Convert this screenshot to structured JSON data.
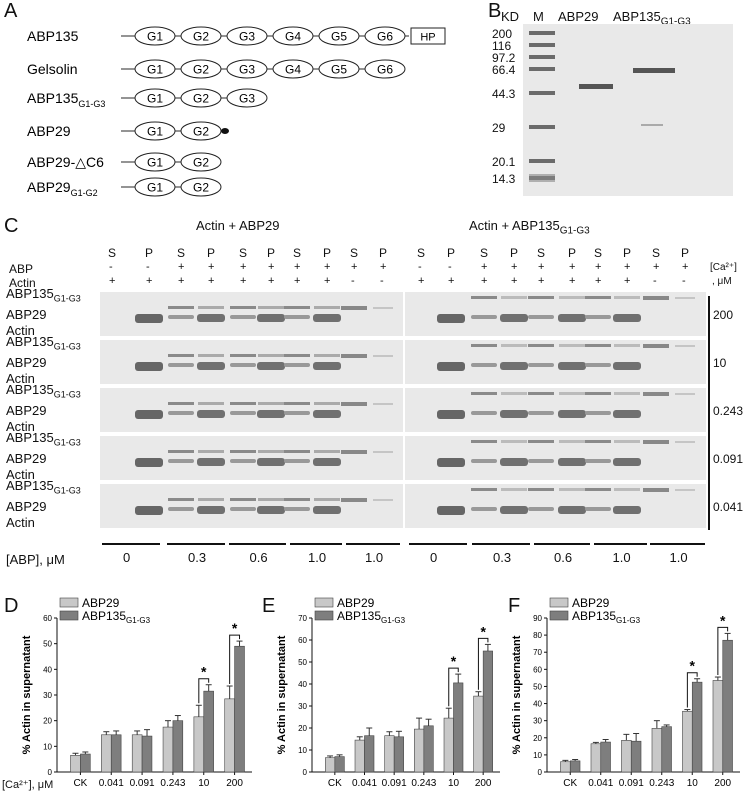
{
  "panel_a": {
    "letter": "A",
    "constructs": [
      {
        "name": "ABP135",
        "sub": "",
        "domains": [
          "G1",
          "G2",
          "G3",
          "G4",
          "G5",
          "G6"
        ],
        "tail": "HP"
      },
      {
        "name": "Gelsolin",
        "sub": "",
        "domains": [
          "G1",
          "G2",
          "G3",
          "G4",
          "G5",
          "G6"
        ],
        "tail": ""
      },
      {
        "name": "ABP135",
        "sub": "G1-G3",
        "domains": [
          "G1",
          "G2",
          "G3"
        ],
        "tail": ""
      },
      {
        "name": "ABP29",
        "sub": "",
        "domains": [
          "G1",
          "G2"
        ],
        "tail": "dot"
      },
      {
        "name": "ABP29-△C6",
        "sub": "",
        "domains": [
          "G1",
          "G2"
        ],
        "tail": ""
      },
      {
        "name": "ABP29",
        "sub": "G1-G2",
        "domains": [
          "G1",
          "G2"
        ],
        "tail": ""
      }
    ]
  },
  "panel_b": {
    "letter": "B",
    "kd_label": "KD",
    "lanes": [
      "M",
      "ABP29",
      "ABP135"
    ],
    "lane_sub": "G1-G3",
    "markers": [
      "200",
      "116",
      "97.2",
      "66.4",
      "44.3",
      "29",
      "20.1",
      "14.3"
    ]
  },
  "panel_c": {
    "letter": "C",
    "title_left": "Actin + ABP29",
    "title_right_main": "Actin + ABP135",
    "title_right_sub": "G1-G3",
    "sp_labels": [
      "S",
      "P",
      "S",
      "P",
      "S",
      "P",
      "S",
      "P",
      "S",
      "P"
    ],
    "abp_row": [
      "-",
      "-",
      "+",
      "+",
      "+",
      "+",
      "+",
      "+",
      "+",
      "+"
    ],
    "actin_row": [
      "+",
      "+",
      "+",
      "+",
      "+",
      "+",
      "+",
      "+",
      "-",
      "-"
    ],
    "abp_label": "ABP",
    "actin_label": "Actin",
    "ca_label": "[Ca²⁺]",
    "um_label": ", μM",
    "band_labels": {
      "abp135": "ABP135",
      "abp135_sub": "G1-G3",
      "abp29": "ABP29",
      "actin": "Actin"
    },
    "ca_values": [
      "200",
      "10",
      "0.243",
      "0.091",
      "0.041"
    ],
    "abp_conc_label": "[ABP],  μM",
    "abp_conc": [
      "0",
      "0.3",
      "0.6",
      "1.0",
      "1.0"
    ]
  },
  "chart_data": [
    {
      "type": "bar",
      "panel": "D",
      "categories": [
        "CK",
        "0.041",
        "0.091",
        "0.243",
        "10",
        "200"
      ],
      "series": [
        {
          "name": "ABP29",
          "values": [
            6.5,
            14.5,
            14.5,
            17.5,
            21.5,
            28.5
          ],
          "errors": [
            0.8,
            1.2,
            1.5,
            2.5,
            4.5,
            5
          ]
        },
        {
          "name": "ABP135G1-G3",
          "values": [
            7,
            14.5,
            14,
            20,
            31.5,
            49
          ],
          "errors": [
            0.8,
            1.5,
            2.5,
            2,
            2.5,
            2
          ]
        }
      ],
      "ylabel": "% Actin in supernatant",
      "xlabel": "[Ca²⁺], μM",
      "ylim": [
        0,
        60
      ],
      "yticks": [
        0,
        10,
        20,
        30,
        40,
        50,
        60
      ],
      "significance": [
        {
          "category": "10",
          "label": "*"
        },
        {
          "category": "200",
          "label": "*"
        }
      ]
    },
    {
      "type": "bar",
      "panel": "E",
      "categories": [
        "CK",
        "0.041",
        "0.091",
        "0.243",
        "10",
        "200"
      ],
      "series": [
        {
          "name": "ABP29",
          "values": [
            6.5,
            14.5,
            16.5,
            19.5,
            24.5,
            34.5
          ],
          "errors": [
            0.8,
            1.5,
            1.8,
            5,
            4.5,
            2
          ]
        },
        {
          "name": "ABP135G1-G3",
          "values": [
            7,
            16.5,
            16,
            21,
            40.5,
            55
          ],
          "errors": [
            0.8,
            3.5,
            2.5,
            3,
            4,
            3
          ]
        }
      ],
      "ylabel": "% Actin in supernatant",
      "xlabel": "",
      "ylim": [
        0,
        70
      ],
      "yticks": [
        0,
        10,
        20,
        30,
        40,
        50,
        60,
        70
      ],
      "significance": [
        {
          "category": "10",
          "label": "*"
        },
        {
          "category": "200",
          "label": "*"
        }
      ]
    },
    {
      "type": "bar",
      "panel": "F",
      "categories": [
        "CK",
        "0.041",
        "0.091",
        "0.243",
        "10",
        "200"
      ],
      "series": [
        {
          "name": "ABP29",
          "values": [
            6,
            16.5,
            18.5,
            25.5,
            35.5,
            53.5
          ],
          "errors": [
            0.8,
            0.8,
            3.5,
            4.5,
            1,
            2
          ]
        },
        {
          "name": "ABP135G1-G3",
          "values": [
            6.5,
            17.5,
            18,
            26.5,
            52.5,
            77
          ],
          "errors": [
            0.8,
            1.5,
            4.5,
            1,
            2,
            4
          ]
        }
      ],
      "ylabel": "% Actin in supernatant",
      "xlabel": "",
      "ylim": [
        0,
        90
      ],
      "yticks": [
        0,
        10,
        20,
        30,
        40,
        50,
        60,
        70,
        80,
        90
      ],
      "significance": [
        {
          "category": "10",
          "label": "*"
        },
        {
          "category": "200",
          "label": "*"
        }
      ]
    }
  ],
  "legend": {
    "abp29": "ABP29",
    "abp135": "ABP135",
    "abp135_sub": "G1-G3"
  },
  "colors": {
    "bar_light": "#c8c8c8",
    "bar_dark": "#7e7e7e",
    "gel_bg": "#e9e9e9",
    "band": "#7a7a7a"
  }
}
